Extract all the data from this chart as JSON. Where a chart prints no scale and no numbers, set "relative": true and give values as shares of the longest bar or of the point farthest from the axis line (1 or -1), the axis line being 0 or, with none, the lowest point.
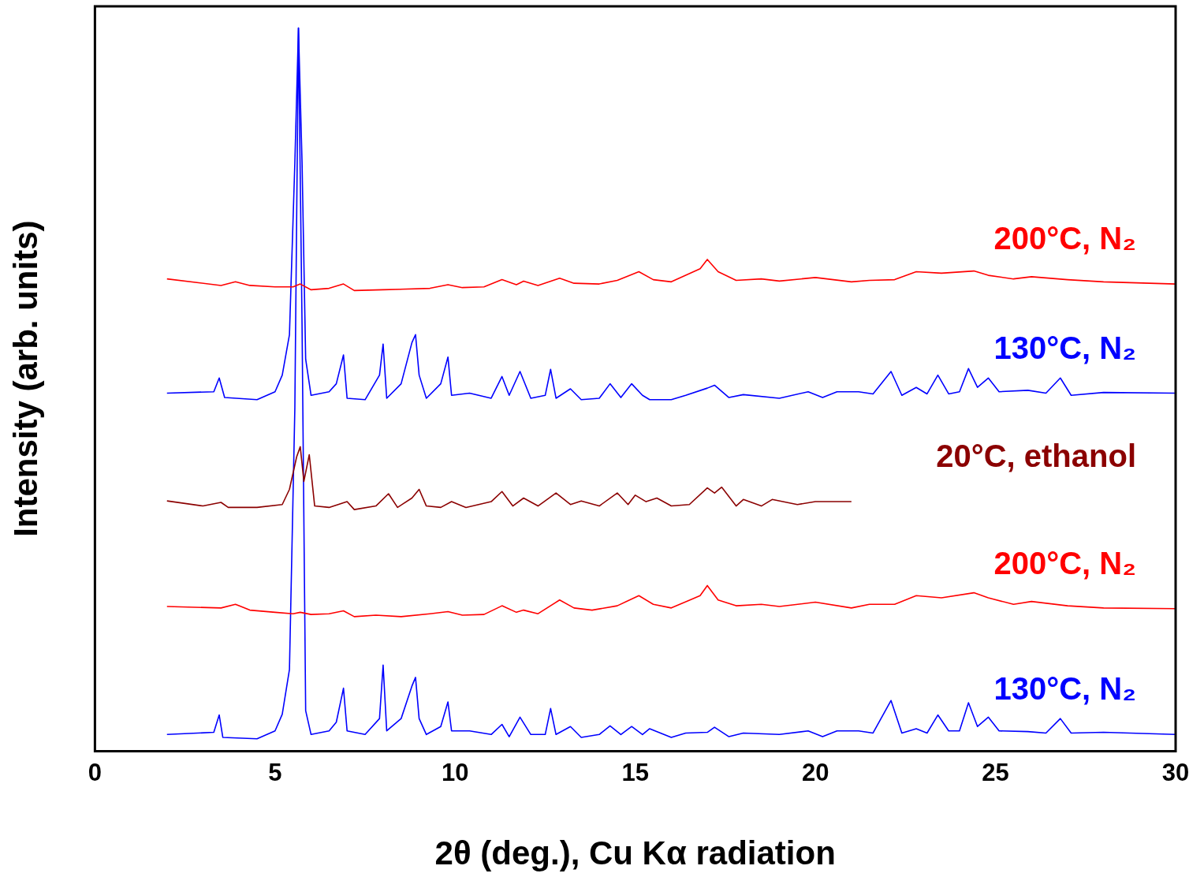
{
  "chart_data": {
    "type": "line",
    "relative": true,
    "xlabel": "2θ (deg.), Cu Kα radiation",
    "ylabel": "Intensity (arb. units)",
    "xlim": [
      0,
      30
    ],
    "xticks": [
      0,
      5,
      10,
      15,
      20,
      25,
      30
    ],
    "grid": false,
    "legend": false,
    "marker": "none",
    "line_style": "solid",
    "series": [
      {
        "name": "200°C, N₂",
        "color": "#ff0000",
        "x": [
          2,
          3.5,
          3.9,
          4.3,
          5.0,
          5.5,
          5.7,
          6.0,
          6.5,
          6.9,
          7.2,
          8,
          9.3,
          9.8,
          10.2,
          10.8,
          11.3,
          11.7,
          11.9,
          12.3,
          12.9,
          13.3,
          14,
          14.5,
          15.1,
          15.5,
          16,
          16.8,
          17.0,
          17.3,
          17.8,
          18.5,
          19,
          20,
          21,
          21.5,
          22.2,
          22.8,
          23.5,
          24.4,
          24.8,
          25.5,
          26,
          27,
          28,
          30
        ],
        "values": [
          0.653,
          0.644,
          0.649,
          0.644,
          0.642,
          0.642,
          0.646,
          0.638,
          0.64,
          0.646,
          0.637,
          0.638,
          0.64,
          0.645,
          0.641,
          0.642,
          0.652,
          0.645,
          0.65,
          0.644,
          0.654,
          0.647,
          0.646,
          0.651,
          0.663,
          0.652,
          0.649,
          0.667,
          0.68,
          0.663,
          0.651,
          0.653,
          0.65,
          0.655,
          0.649,
          0.651,
          0.652,
          0.663,
          0.661,
          0.664,
          0.658,
          0.653,
          0.656,
          0.652,
          0.649,
          0.646
        ]
      },
      {
        "name": "130°C, N₂",
        "color": "#0000ff",
        "x": [
          2,
          3.3,
          3.45,
          3.6,
          4.5,
          5.0,
          5.2,
          5.4,
          5.55,
          5.65,
          5.75,
          5.85,
          6.0,
          6.5,
          6.7,
          6.9,
          7.0,
          7.5,
          7.9,
          8.0,
          8.1,
          8.5,
          8.8,
          8.9,
          9.0,
          9.2,
          9.6,
          9.8,
          9.9,
          10.4,
          11.0,
          11.3,
          11.5,
          11.8,
          12.1,
          12.5,
          12.65,
          12.8,
          13.2,
          13.5,
          14.0,
          14.3,
          14.6,
          14.9,
          15.2,
          15.4,
          16,
          16.4,
          17,
          17.2,
          17.6,
          18,
          19,
          19.8,
          20.2,
          20.6,
          21.2,
          21.6,
          22.1,
          22.4,
          22.8,
          23.1,
          23.4,
          23.7,
          24.0,
          24.25,
          24.5,
          24.8,
          25.1,
          25.9,
          26.4,
          26.8,
          27.1,
          28,
          30
        ],
        "values": [
          0.495,
          0.497,
          0.516,
          0.489,
          0.486,
          0.497,
          0.52,
          0.576,
          0.814,
          1,
          0.814,
          0.542,
          0.492,
          0.497,
          0.508,
          0.548,
          0.488,
          0.486,
          0.52,
          0.563,
          0.488,
          0.508,
          0.565,
          0.576,
          0.52,
          0.488,
          0.508,
          0.545,
          0.492,
          0.495,
          0.488,
          0.518,
          0.492,
          0.525,
          0.488,
          0.492,
          0.528,
          0.488,
          0.501,
          0.486,
          0.488,
          0.508,
          0.489,
          0.508,
          0.492,
          0.486,
          0.486,
          0.492,
          0.502,
          0.506,
          0.489,
          0.493,
          0.488,
          0.497,
          0.489,
          0.497,
          0.497,
          0.494,
          0.525,
          0.492,
          0.503,
          0.494,
          0.52,
          0.494,
          0.497,
          0.529,
          0.503,
          0.516,
          0.497,
          0.499,
          0.495,
          0.516,
          0.492,
          0.496,
          0.495
        ]
      },
      {
        "name": "20°C, ethanol",
        "color": "#8b0000",
        "x": [
          2,
          3,
          3.5,
          3.7,
          4.5,
          5.2,
          5.4,
          5.6,
          5.7,
          5.8,
          5.95,
          6.1,
          6.5,
          7.0,
          7.2,
          7.8,
          8.15,
          8.4,
          8.8,
          9.0,
          9.2,
          9.6,
          9.9,
          10.3,
          11.0,
          11.3,
          11.6,
          11.9,
          12.3,
          12.8,
          13.2,
          13.5,
          14.0,
          14.5,
          14.8,
          15.0,
          15.3,
          15.6,
          16,
          16.5,
          17.0,
          17.2,
          17.4,
          17.8,
          18.0,
          18.5,
          18.8,
          19.5,
          20,
          21
        ],
        "values": [
          0.346,
          0.339,
          0.344,
          0.337,
          0.337,
          0.341,
          0.362,
          0.407,
          0.421,
          0.373,
          0.41,
          0.339,
          0.337,
          0.345,
          0.334,
          0.339,
          0.356,
          0.337,
          0.35,
          0.362,
          0.339,
          0.337,
          0.345,
          0.337,
          0.345,
          0.359,
          0.339,
          0.35,
          0.339,
          0.357,
          0.341,
          0.346,
          0.339,
          0.357,
          0.341,
          0.354,
          0.345,
          0.35,
          0.339,
          0.341,
          0.364,
          0.357,
          0.365,
          0.339,
          0.348,
          0.339,
          0.348,
          0.341,
          0.345,
          0.345
        ]
      },
      {
        "name": "200°C, N₂",
        "color": "#ff0000",
        "x": [
          2,
          3.5,
          3.9,
          4.0,
          4.3,
          5.0,
          5.5,
          5.7,
          6.0,
          6.5,
          6.9,
          7.2,
          7.8,
          8.5,
          9.3,
          9.8,
          10.2,
          10.8,
          11.3,
          11.7,
          11.9,
          12.3,
          12.9,
          13.3,
          13.8,
          14.5,
          15.1,
          15.5,
          16,
          16.8,
          17.0,
          17.3,
          17.8,
          18.5,
          19,
          20,
          21,
          21.5,
          22.2,
          22.8,
          23.5,
          24.4,
          24.8,
          25.5,
          26,
          27,
          28,
          30
        ],
        "values": [
          0.2,
          0.198,
          0.203,
          0.201,
          0.195,
          0.192,
          0.19,
          0.192,
          0.189,
          0.19,
          0.194,
          0.186,
          0.188,
          0.186,
          0.19,
          0.193,
          0.188,
          0.189,
          0.201,
          0.192,
          0.195,
          0.19,
          0.209,
          0.198,
          0.195,
          0.201,
          0.215,
          0.203,
          0.198,
          0.215,
          0.229,
          0.209,
          0.201,
          0.203,
          0.2,
          0.206,
          0.198,
          0.203,
          0.203,
          0.215,
          0.212,
          0.219,
          0.212,
          0.203,
          0.207,
          0.201,
          0.198,
          0.197
        ]
      },
      {
        "name": "130°C, N₂",
        "color": "#0000ff",
        "x": [
          2,
          3.3,
          3.45,
          3.55,
          4.5,
          5.0,
          5.2,
          5.4,
          5.55,
          5.65,
          5.75,
          5.85,
          6.0,
          6.5,
          6.7,
          6.9,
          7.0,
          7.5,
          7.9,
          8.0,
          8.1,
          8.5,
          8.8,
          8.9,
          9.0,
          9.2,
          9.6,
          9.8,
          9.9,
          10.4,
          11.0,
          11.3,
          11.5,
          11.8,
          12.1,
          12.5,
          12.65,
          12.8,
          13.2,
          13.5,
          14.0,
          14.3,
          14.6,
          14.9,
          15.2,
          15.4,
          16,
          16.4,
          17,
          17.2,
          17.6,
          18,
          19,
          19.8,
          20.2,
          20.6,
          21.2,
          21.6,
          22.1,
          22.4,
          22.8,
          23.1,
          23.4,
          23.7,
          24.0,
          24.25,
          24.5,
          24.8,
          25.1,
          25.9,
          26.4,
          26.8,
          27.1,
          28,
          30
        ],
        "values": [
          0.023,
          0.026,
          0.05,
          0.019,
          0.017,
          0.028,
          0.051,
          0.113,
          0.475,
          1,
          0.588,
          0.056,
          0.023,
          0.028,
          0.04,
          0.087,
          0.028,
          0.023,
          0.045,
          0.119,
          0.028,
          0.045,
          0.09,
          0.102,
          0.045,
          0.023,
          0.034,
          0.068,
          0.028,
          0.028,
          0.023,
          0.037,
          0.02,
          0.047,
          0.023,
          0.023,
          0.059,
          0.023,
          0.034,
          0.019,
          0.023,
          0.035,
          0.023,
          0.034,
          0.023,
          0.031,
          0.019,
          0.025,
          0.026,
          0.033,
          0.02,
          0.025,
          0.023,
          0.028,
          0.02,
          0.028,
          0.028,
          0.025,
          0.07,
          0.025,
          0.031,
          0.025,
          0.05,
          0.028,
          0.028,
          0.067,
          0.034,
          0.047,
          0.028,
          0.027,
          0.025,
          0.045,
          0.025,
          0.026,
          0.023
        ]
      }
    ]
  }
}
